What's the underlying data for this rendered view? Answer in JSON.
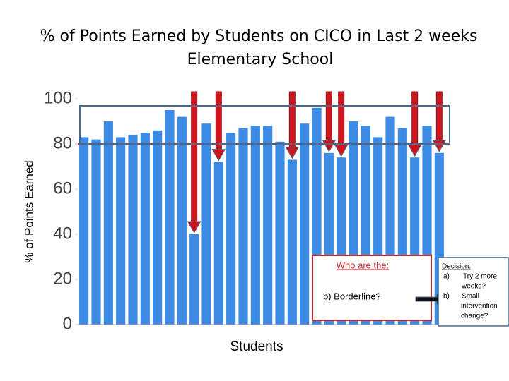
{
  "chart_data": {
    "type": "bar",
    "title": "% of Points Earned by Students on CICO in Last 2 weeks",
    "subtitle": "Elementary School",
    "y_label": "% of Points Earned",
    "x_label": "Students",
    "categories": [
      null,
      null,
      null,
      null,
      null,
      null,
      null,
      null,
      null,
      null,
      null,
      null,
      null,
      null,
      null,
      null,
      null,
      null,
      null,
      null,
      null,
      null,
      null,
      null,
      null,
      null,
      null,
      null,
      null,
      null
    ],
    "values": [
      83,
      82,
      90,
      83,
      84,
      85,
      86,
      95,
      92,
      40,
      89,
      72,
      85,
      87,
      88,
      88,
      81,
      73,
      89,
      96,
      76,
      74,
      90,
      88,
      83,
      92,
      87,
      74,
      88,
      76
    ],
    "color": "#3c8ce6",
    "threshold": 80,
    "ylim": [
      0,
      100
    ],
    "yticks": [
      0,
      20,
      40,
      60,
      80,
      100
    ],
    "annotations": {
      "question_title": "Who are the:",
      "question_item": "b)  Borderline?",
      "decision_title": "Decision:",
      "decision_a_marker": "a)",
      "decision_a_lines": [
        "Try 2 more",
        "weeks?"
      ],
      "decision_b_marker": "b)",
      "decision_b_lines": [
        "Small",
        "intervention",
        "change?"
      ]
    }
  }
}
